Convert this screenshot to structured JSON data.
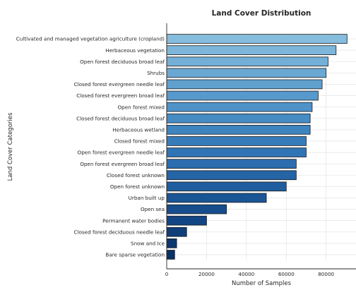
{
  "chart_data": {
    "type": "bar",
    "orientation": "horizontal",
    "title": "Land Cover Distribution",
    "xlabel": "Number of Samples",
    "ylabel": "Land Cover Categories",
    "xlim": [
      0,
      95000
    ],
    "xticks": [
      0,
      20000,
      40000,
      60000,
      80000
    ],
    "xtick_labels": [
      "0",
      "20000",
      "40000",
      "60000",
      "80000"
    ],
    "grid": true,
    "categories": [
      "Cultivated and managed vegetation agriculture (cropland)",
      "Herbaceous vegetation",
      "Open forest deciduous broad leaf",
      "Shrubs",
      "Closed forest evergreen needle leaf",
      "Closed forest evergreen broad leaf",
      "Open forest mixed",
      "Closed forest deciduous broad leaf",
      "Herbaceous wetland",
      "Closed forest mixed",
      "Open forest evergreen needle leaf",
      "Open forest evergreen broad leaf",
      "Closed forest unknown",
      "Open forest unknown",
      "Urban built up",
      "Open sea",
      "Permanent water bodies",
      "Closed forest deciduous needle leaf",
      "Snow and Ice",
      "Bare sparse vegetation"
    ],
    "values": [
      90500,
      85000,
      81000,
      80000,
      78000,
      76000,
      73000,
      72000,
      72000,
      70000,
      70000,
      65000,
      65000,
      60000,
      50000,
      30000,
      20000,
      10000,
      5000,
      4000
    ],
    "colors": [
      "#86bcdc",
      "#7db6da",
      "#73afd7",
      "#6aa8d3",
      "#60a0cf",
      "#5799cc",
      "#4e92c8",
      "#468bc4",
      "#3e84bf",
      "#377cba",
      "#3174b5",
      "#2b6dae",
      "#2565a6",
      "#1f5d9e",
      "#1a5596",
      "#164d8c",
      "#124583",
      "#0f3e79",
      "#0c376f",
      "#0a3166"
    ]
  }
}
